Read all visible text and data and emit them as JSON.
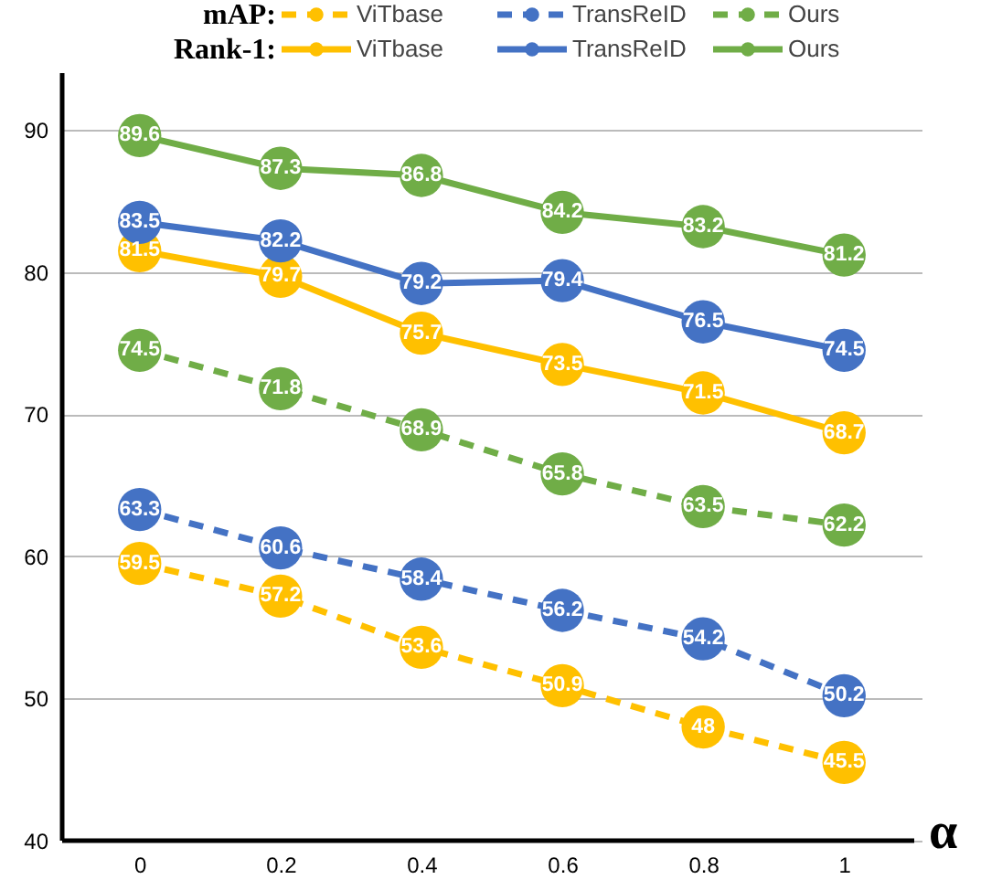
{
  "chart_data": {
    "type": "line",
    "xlabel": "α",
    "categories": [
      "0",
      "0.2",
      "0.4",
      "0.6",
      "0.8",
      "1"
    ],
    "annotations": [
      "mAP:",
      "Rank-1:"
    ],
    "ylim": [
      40,
      94
    ],
    "yticks": [
      40,
      50,
      60,
      70,
      80,
      90
    ],
    "grid": "y",
    "legend": "top",
    "marker": "circle",
    "data_labels": true,
    "series": [
      {
        "name": "ViTbase",
        "color": "#ffc000",
        "line_style": "dashed",
        "values": [
          59.5,
          57.2,
          53.6,
          50.9,
          48,
          45.5
        ]
      },
      {
        "name": "TransReID",
        "color": "#4472c4",
        "line_style": "dashed",
        "values": [
          63.3,
          60.6,
          58.4,
          56.2,
          54.2,
          50.2
        ]
      },
      {
        "name": "Ours",
        "color": "#70ad47",
        "line_style": "dashed",
        "values": [
          74.5,
          71.8,
          68.9,
          65.8,
          63.5,
          62.2
        ]
      },
      {
        "name": "ViTbase",
        "color": "#ffc000",
        "line_style": "solid",
        "values": [
          81.5,
          79.7,
          75.7,
          73.5,
          71.5,
          68.7
        ]
      },
      {
        "name": "TransReID",
        "color": "#4472c4",
        "line_style": "solid",
        "values": [
          83.5,
          82.2,
          79.2,
          79.4,
          76.5,
          74.5
        ]
      },
      {
        "name": "Ours",
        "color": "#70ad47",
        "line_style": "solid",
        "values": [
          89.6,
          87.3,
          86.8,
          84.2,
          83.2,
          81.2
        ]
      }
    ]
  }
}
